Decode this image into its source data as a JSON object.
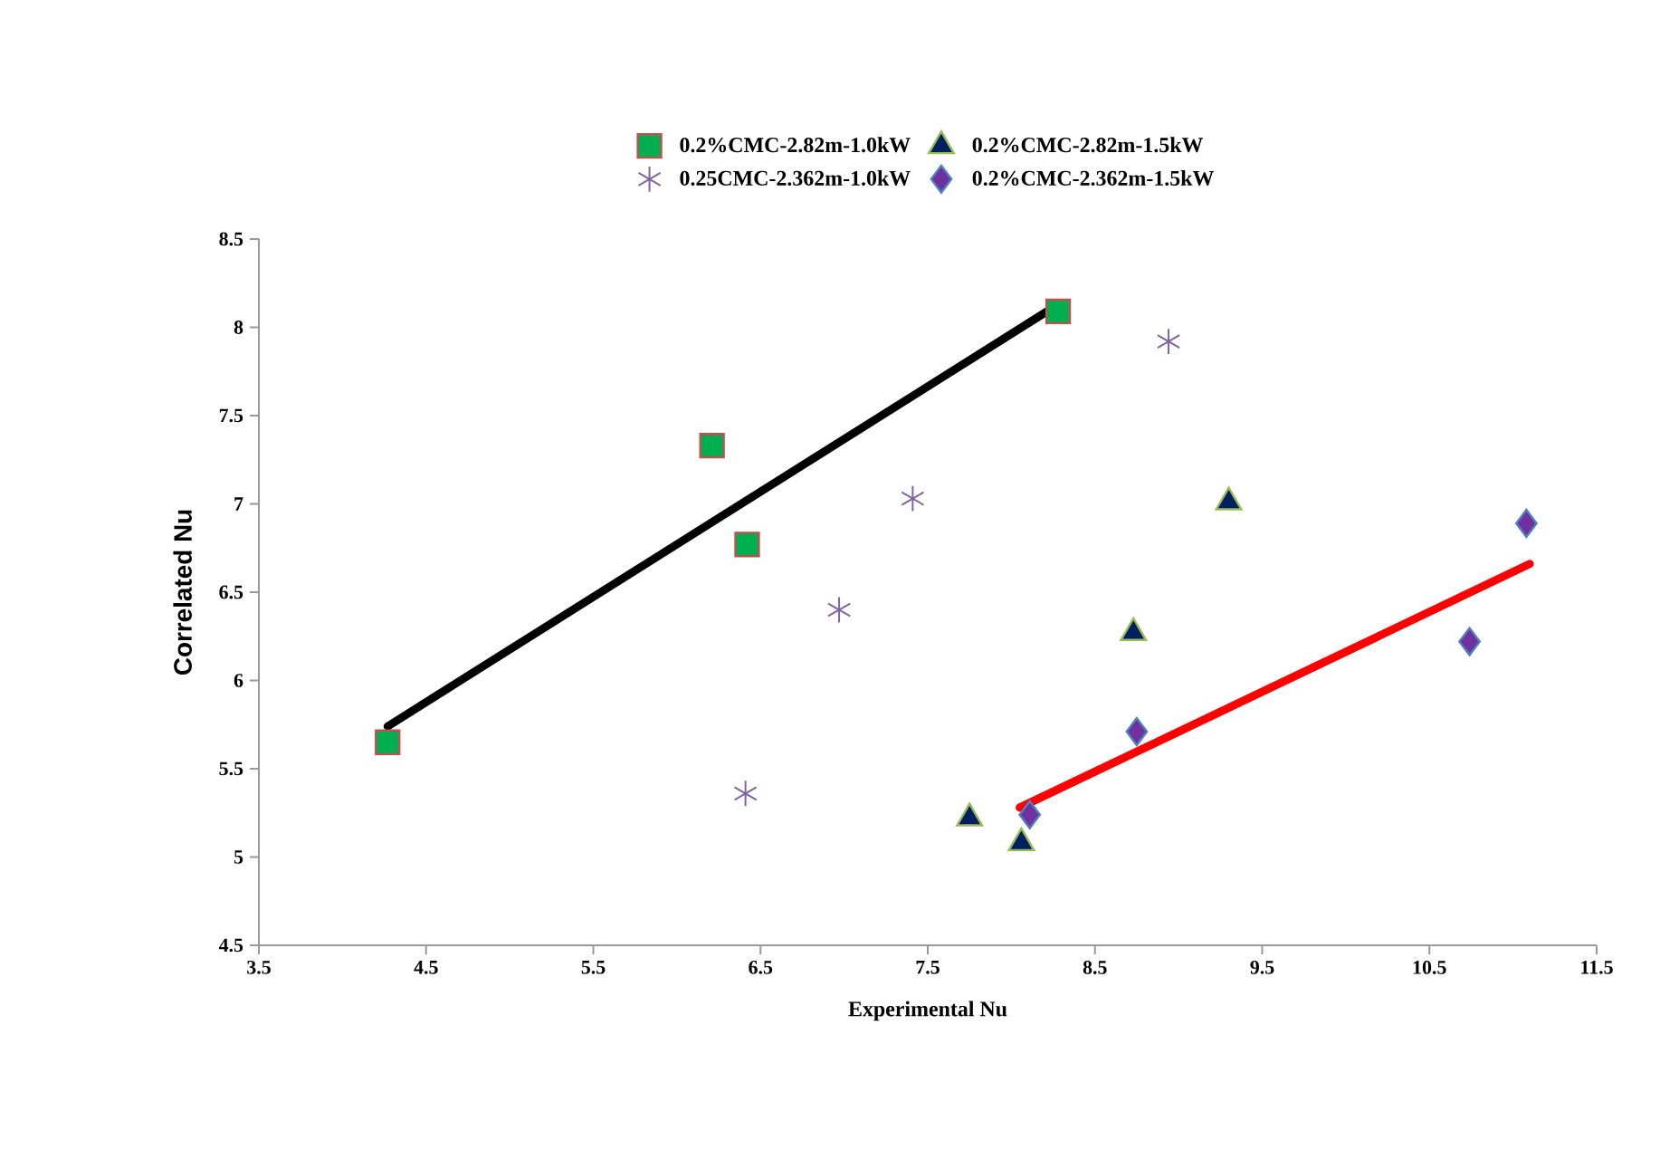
{
  "chart_data": {
    "type": "scatter",
    "xlabel": "Experimental  Nu",
    "ylabel": "Correlated  Nu",
    "xlim": [
      3.5,
      11.5
    ],
    "ylim": [
      4.5,
      8.5
    ],
    "xticks": [
      3.5,
      4.5,
      5.5,
      6.5,
      7.5,
      8.5,
      9.5,
      10.5,
      11.5
    ],
    "yticks": [
      4.5,
      5,
      5.5,
      6,
      6.5,
      7,
      7.5,
      8,
      8.5
    ],
    "legend": "top",
    "series": [
      {
        "name": "0.2%CMC-2.82m-1.0kW",
        "color": "#00b050",
        "marker": "square",
        "x": [
          4.27,
          6.21,
          6.42,
          8.28
        ],
        "values": [
          5.65,
          7.33,
          6.77,
          8.09
        ]
      },
      {
        "name": "0.2%CMC-2.82m-1.5kW",
        "color": "#002060",
        "marker": "triangle",
        "x": [
          7.75,
          8.06,
          8.73,
          9.3
        ],
        "values": [
          5.22,
          5.08,
          6.27,
          7.01
        ]
      },
      {
        "name": "0.25CMC-2.362m-1.0kW",
        "color": "#8064a2",
        "marker": "cross",
        "x": [
          6.41,
          6.97,
          7.41,
          8.94
        ],
        "values": [
          5.36,
          6.4,
          7.03,
          7.92
        ]
      },
      {
        "name": "0.2%CMC-2.362m-1.5kW",
        "color": "#7030a0",
        "marker": "diamond",
        "x": [
          8.11,
          8.75,
          10.74,
          11.08
        ],
        "values": [
          5.24,
          5.71,
          6.22,
          6.89
        ]
      },
      {
        "type": "line",
        "color": "#000000",
        "marker": "none",
        "x": [
          4.27,
          8.28
        ],
        "values": [
          5.74,
          8.13
        ]
      },
      {
        "type": "line",
        "color": "#ff0000",
        "marker": "none",
        "x": [
          8.05,
          11.1
        ],
        "values": [
          5.28,
          6.66
        ]
      }
    ]
  }
}
